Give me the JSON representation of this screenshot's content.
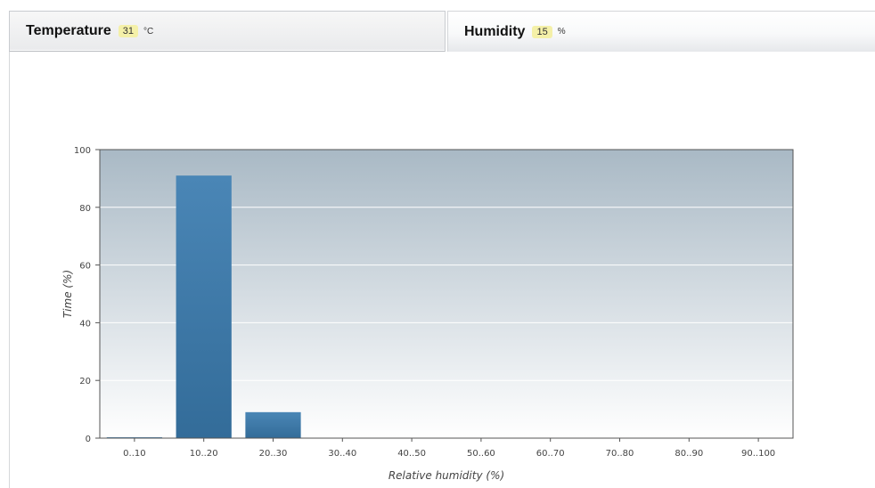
{
  "tabs": {
    "temperature": {
      "label": "Temperature",
      "value": "31",
      "unit": "°C"
    },
    "humidity": {
      "label": "Humidity",
      "value": "15",
      "unit": "%"
    }
  },
  "chart_data": {
    "type": "bar",
    "title": "",
    "xlabel": "Relative humidity (%)",
    "ylabel": "Time (%)",
    "categories": [
      "0..10",
      "10..20",
      "20..30",
      "30..40",
      "40..50",
      "50..60",
      "60..70",
      "70..80",
      "80..90",
      "90..100"
    ],
    "values": [
      0.3,
      91,
      9,
      0,
      0,
      0,
      0,
      0,
      0,
      0
    ],
    "ylim": [
      0,
      100
    ],
    "yticks": [
      0,
      20,
      40,
      60,
      80,
      100
    ],
    "grid": true,
    "colors": {
      "bar": "#3f78a8",
      "plot_bg_top": "#a9b9c5",
      "plot_bg_bottom": "#ffffff",
      "gridline": "#ffffff",
      "axis": "#555555"
    }
  }
}
